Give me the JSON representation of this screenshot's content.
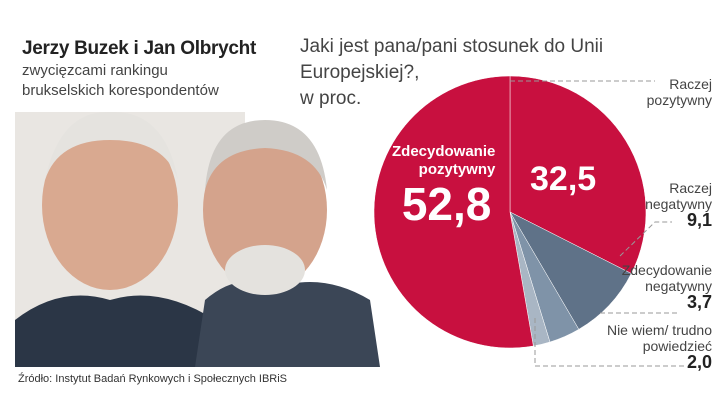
{
  "header": {
    "title": "Jerzy Buzek i Jan Olbrycht",
    "subtitle_line1": "zwycięzcami rankingu",
    "subtitle_line2": "brukselskich korespondentów"
  },
  "source": "Źródło: Instytut Badań Rynkowych i Społecznych IBRiS",
  "chart_data": {
    "type": "pie",
    "title_line1": "Jaki jest pana/pani stosunek do Unii Europejskiej?,",
    "title_line2": "w proc.",
    "slices": [
      {
        "label_line1": "Raczej",
        "label_line2": "pozytywny",
        "value": 32.5,
        "value_text": "32,5",
        "color": "#c8103f"
      },
      {
        "label_line1": "Raczej",
        "label_line2": "negatywny",
        "value": 9.1,
        "value_text": "9,1",
        "color": "#5f7288"
      },
      {
        "label_line1": "Zdecydowanie",
        "label_line2": "negatywny",
        "value": 3.7,
        "value_text": "3,7",
        "color": "#7f93a8"
      },
      {
        "label_line1": "Nie wiem/ trudno",
        "label_line2": "powiedzieć",
        "value": 2.0,
        "value_text": "2,0",
        "color": "#a9b6c4"
      },
      {
        "label_line1": "Zdecydowanie",
        "label_line2": "pozytywny",
        "value": 52.8,
        "value_text": "52,8",
        "color": "#c8103f"
      }
    ]
  }
}
